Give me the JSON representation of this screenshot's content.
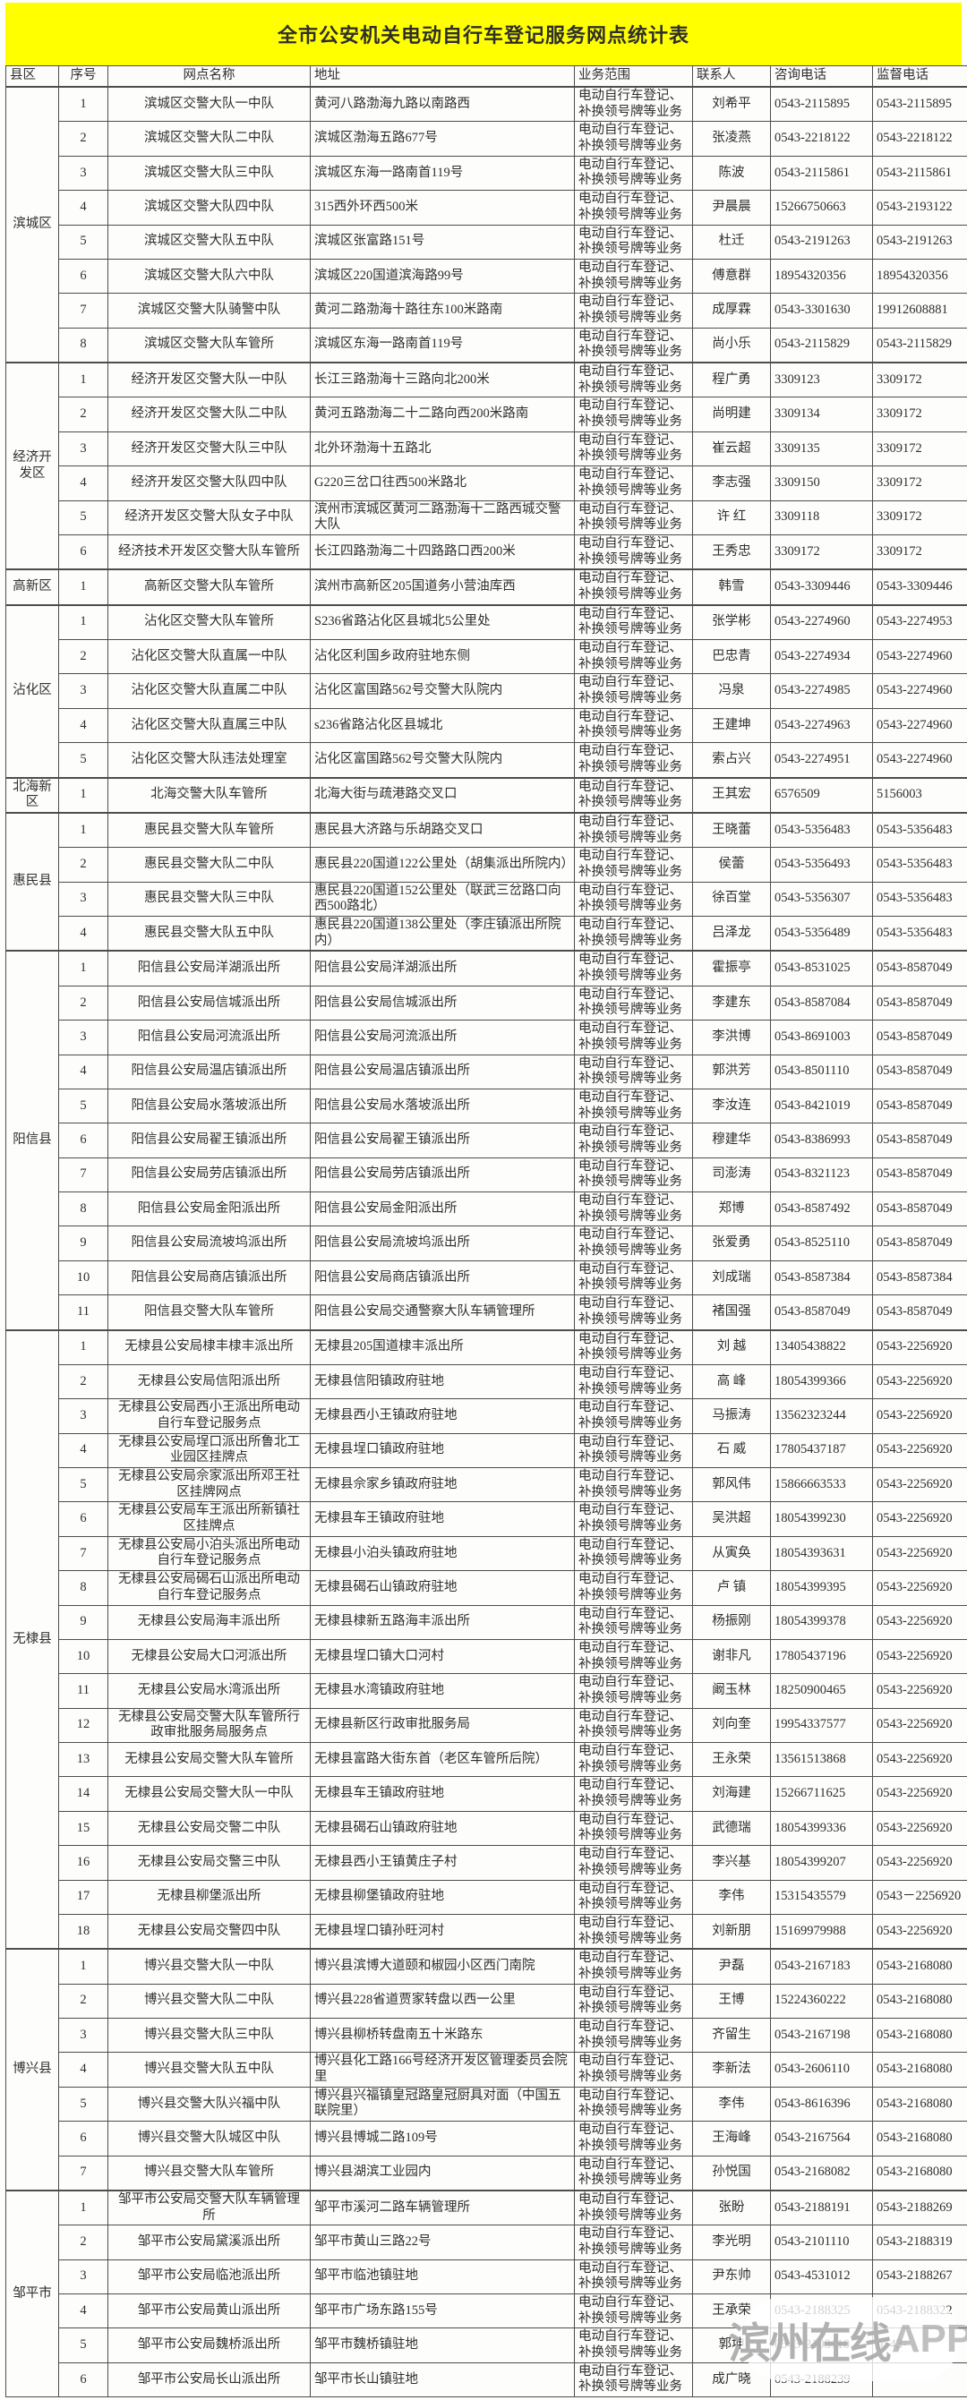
{
  "title": "全市公安机关电动自行车登记服务网点统计表",
  "columns": [
    "县区",
    "序号",
    "网点名称",
    "地址",
    "业务范围",
    "联系人",
    "咨询电话",
    "监督电话"
  ],
  "business_scope": "电动自行车登记、补换领号牌等业务",
  "watermark": {
    "text_cn": "滨州在线",
    "text_en": "APP"
  },
  "colors": {
    "title_bg": "#FFFF00",
    "border": "#4d4d4d"
  },
  "groups": [
    {
      "county": "滨城区",
      "rows": [
        {
          "no": "1",
          "name": "滨城区交警大队一中队",
          "addr": "黄河八路渤海九路以南路西",
          "contact": "刘希平",
          "tel": "0543-2115895",
          "sup": "0543-2115895"
        },
        {
          "no": "2",
          "name": "滨城区交警大队二中队",
          "addr": "滨城区渤海五路677号",
          "contact": "张凌燕",
          "tel": "0543-2218122",
          "sup": "0543-2218122"
        },
        {
          "no": "3",
          "name": "滨城区交警大队三中队",
          "addr": "滨城区东海一路南首119号",
          "contact": "陈波",
          "tel": "0543-2115861",
          "sup": "0543-2115861"
        },
        {
          "no": "4",
          "name": "滨城区交警大队四中队",
          "addr": "315西外环西500米",
          "contact": "尹晨晨",
          "tel": "15266750663",
          "sup": "0543-2193122"
        },
        {
          "no": "5",
          "name": "滨城区交警大队五中队",
          "addr": "滨城区张富路151号",
          "contact": "杜迁",
          "tel": "0543-2191263",
          "sup": "0543-2191263"
        },
        {
          "no": "6",
          "name": "滨城区交警大队六中队",
          "addr": "滨城区220国道滨海路99号",
          "contact": "傅意群",
          "tel": "18954320356",
          "sup": "18954320356"
        },
        {
          "no": "7",
          "name": "滨城区交警大队骑警中队",
          "addr": "黄河二路渤海十路往东100米路南",
          "contact": "成厚霖",
          "tel": "0543-3301630",
          "sup": "19912608881"
        },
        {
          "no": "8",
          "name": "滨城区交警大队车管所",
          "addr": "滨城区东海一路南首119号",
          "contact": "尚小乐",
          "tel": "0543-2115829",
          "sup": "0543-2115829"
        }
      ]
    },
    {
      "county": "经济开发区",
      "rows": [
        {
          "no": "1",
          "name": "经济开发区交警大队一中队",
          "addr": "长江三路渤海十三路向北200米",
          "contact": "程广勇",
          "tel": "3309123",
          "sup": "3309172"
        },
        {
          "no": "2",
          "name": "经济开发区交警大队二中队",
          "addr": "黄河五路渤海二十二路向西200米路南",
          "contact": "尚明建",
          "tel": "3309134",
          "sup": "3309172"
        },
        {
          "no": "3",
          "name": "经济开发区交警大队三中队",
          "addr": "北外环渤海十五路北",
          "contact": "崔云超",
          "tel": "3309135",
          "sup": "3309172"
        },
        {
          "no": "4",
          "name": "经济开发区交警大队四中队",
          "addr": "G220三岔口往西500米路北",
          "contact": "李志强",
          "tel": "3309150",
          "sup": "3309172"
        },
        {
          "no": "5",
          "name": "经济开发区交警大队女子中队",
          "addr": "滨州市滨城区黄河二路渤海十二路西城交警大队",
          "contact": "许  红",
          "tel": "3309118",
          "sup": "3309172"
        },
        {
          "no": "6",
          "name": "经济技术开发区交警大队车管所",
          "addr": "长江四路渤海二十四路路口西200米",
          "contact": "王秀忠",
          "tel": "3309172",
          "sup": "3309172"
        }
      ]
    },
    {
      "county": "高新区",
      "rows": [
        {
          "no": "1",
          "name": "高新区交警大队车管所",
          "addr": "滨州市高新区205国道务小营油库西",
          "contact": "韩雪",
          "tel": "0543-3309446",
          "sup": "0543-3309446"
        }
      ]
    },
    {
      "county": "沾化区",
      "rows": [
        {
          "no": "1",
          "name": "沾化区交警大队车管所",
          "addr": "S236省路沾化区县城北5公里处",
          "contact": "张学彬",
          "tel": "0543-2274960",
          "sup": "0543-2274953"
        },
        {
          "no": "2",
          "name": "沾化区交警大队直属一中队",
          "addr": "沾化区利国乡政府驻地东侧",
          "contact": "巴忠青",
          "tel": "0543-2274934",
          "sup": "0543-2274960"
        },
        {
          "no": "3",
          "name": "沾化区交警大队直属二中队",
          "addr": "沾化区富国路562号交警大队院内",
          "contact": "冯泉",
          "tel": "0543-2274985",
          "sup": "0543-2274960"
        },
        {
          "no": "4",
          "name": "沾化区交警大队直属三中队",
          "addr": "s236省路沾化区县城北",
          "contact": "王建坤",
          "tel": "0543-2274963",
          "sup": "0543-2274960"
        },
        {
          "no": "5",
          "name": "沾化区交警大队违法处理室",
          "addr": "沾化区富国路562号交警大队院内",
          "contact": "索占兴",
          "tel": "0543-2274951",
          "sup": "0543-2274960"
        }
      ]
    },
    {
      "county": "北海新区",
      "rows": [
        {
          "no": "1",
          "name": "北海交警大队车管所",
          "addr": "北海大街与疏港路交叉口",
          "contact": "王其宏",
          "tel": "6576509",
          "sup": "5156003"
        }
      ]
    },
    {
      "county": "惠民县",
      "rows": [
        {
          "no": "1",
          "name": "惠民县交警大队车管所",
          "addr": "惠民县大济路与乐胡路交叉口",
          "contact": "王晓蕾",
          "tel": "0543-5356483",
          "sup": "0543-5356483"
        },
        {
          "no": "2",
          "name": "惠民县交警大队二中队",
          "addr": "惠民县220国道122公里处（胡集派出所院内）",
          "contact": "侯蕾",
          "tel": "0543-5356493",
          "sup": "0543-5356483"
        },
        {
          "no": "3",
          "name": "惠民县交警大队三中队",
          "addr": "惠民县220国道152公里处（联武三岔路口向西500路北）",
          "contact": "徐百堂",
          "tel": "0543-5356307",
          "sup": "0543-5356483"
        },
        {
          "no": "4",
          "name": "惠民县交警大队五中队",
          "addr": "惠民县220国道138公里处（李庄镇派出所院内）",
          "contact": "吕泽龙",
          "tel": "0543-5356489",
          "sup": "0543-5356483"
        }
      ]
    },
    {
      "county": "阳信县",
      "rows": [
        {
          "no": "1",
          "name": "阳信县公安局洋湖派出所",
          "addr": "阳信县公安局洋湖派出所",
          "contact": "霍振亭",
          "tel": "0543-8531025",
          "sup": "0543-8587049"
        },
        {
          "no": "2",
          "name": "阳信县公安局信城派出所",
          "addr": "阳信县公安局信城派出所",
          "contact": "李建东",
          "tel": "0543-8587084",
          "sup": "0543-8587049"
        },
        {
          "no": "3",
          "name": "阳信县公安局河流派出所",
          "addr": "阳信县公安局河流派出所",
          "contact": "李洪博",
          "tel": "0543-8691003",
          "sup": "0543-8587049"
        },
        {
          "no": "4",
          "name": "阳信县公安局温店镇派出所",
          "addr": "阳信县公安局温店镇派出所",
          "contact": "郭洪芳",
          "tel": "0543-8501110",
          "sup": "0543-8587049"
        },
        {
          "no": "5",
          "name": "阳信县公安局水落坡派出所",
          "addr": "阳信县公安局水落坡派出所",
          "contact": "李汝连",
          "tel": "0543-8421019",
          "sup": "0543-8587049"
        },
        {
          "no": "6",
          "name": "阳信县公安局翟王镇派出所",
          "addr": "阳信县公安局翟王镇派出所",
          "contact": "穆建华",
          "tel": "0543-8386993",
          "sup": "0543-8587049"
        },
        {
          "no": "7",
          "name": "阳信县公安局劳店镇派出所",
          "addr": "阳信县公安局劳店镇派出所",
          "contact": "司澎涛",
          "tel": "0543-8321123",
          "sup": "0543-8587049"
        },
        {
          "no": "8",
          "name": "阳信县公安局金阳派出所",
          "addr": "阳信县公安局金阳派出所",
          "contact": "郑博",
          "tel": "0543-8587492",
          "sup": "0543-8587049"
        },
        {
          "no": "9",
          "name": "阳信县公安局流坡坞派出所",
          "addr": "阳信县公安局流坡坞派出所",
          "contact": "张爱勇",
          "tel": "0543-8525110",
          "sup": "0543-8587049"
        },
        {
          "no": "10",
          "name": "阳信县公安局商店镇派出所",
          "addr": "阳信县公安局商店镇派出所",
          "contact": "刘成瑞",
          "tel": "0543-8587384",
          "sup": "0543-8587384"
        },
        {
          "no": "11",
          "name": "阳信县交警大队车管所",
          "addr": "阳信县公安局交通警察大队车辆管理所",
          "contact": "褚国强",
          "tel": "0543-8587049",
          "sup": "0543-8587049"
        }
      ]
    },
    {
      "county": "无棣县",
      "rows": [
        {
          "no": "1",
          "name": "无棣县公安局棣丰棣丰派出所",
          "addr": "无棣县205国道棣丰派出所",
          "contact": "刘  越",
          "tel": "13405438822",
          "sup": "0543-2256920"
        },
        {
          "no": "2",
          "name": "无棣县公安局信阳派出所",
          "addr": "无棣县信阳镇政府驻地",
          "contact": "高  峰",
          "tel": "18054399366",
          "sup": "0543-2256920"
        },
        {
          "no": "3",
          "name": "无棣县公安局西小王派出所电动自行车登记服务点",
          "addr": "无棣县西小王镇政府驻地",
          "contact": "马振涛",
          "tel": "13562323244",
          "sup": "0543-2256920"
        },
        {
          "no": "4",
          "name": "无棣县公安局埕口派出所鲁北工业园区挂牌点",
          "addr": "无棣县埕口镇政府驻地",
          "contact": "石  威",
          "tel": "17805437187",
          "sup": "0543-2256920"
        },
        {
          "no": "5",
          "name": "无棣县公安局佘家派出所邓王社区挂牌网点",
          "addr": "无棣县佘家乡镇政府驻地",
          "contact": "郭风伟",
          "tel": "15866663533",
          "sup": "0543-2256920"
        },
        {
          "no": "6",
          "name": "无棣县公安局车王派出所新镇社区挂牌点",
          "addr": "无棣县车王镇政府驻地",
          "contact": "吴洪超",
          "tel": "18054399230",
          "sup": "0543-2256920"
        },
        {
          "no": "7",
          "name": "无棣县公安局小泊头派出所电动自行车登记服务点",
          "addr": "无棣县小泊头镇政府驻地",
          "contact": "从寅奂",
          "tel": "18054393631",
          "sup": "0543-2256920"
        },
        {
          "no": "8",
          "name": "无棣县公安局碣石山派出所电动自行车登记服务点",
          "addr": "无棣县碣石山镇政府驻地",
          "contact": "卢  镇",
          "tel": "18054399395",
          "sup": "0543-2256920"
        },
        {
          "no": "9",
          "name": "无棣县公安局海丰派出所",
          "addr": "无棣县棣新五路海丰派出所",
          "contact": "杨振刚",
          "tel": "18054399378",
          "sup": "0543-2256920"
        },
        {
          "no": "10",
          "name": "无棣县公安局大口河派出所",
          "addr": "无棣县埕口镇大口河村",
          "contact": "谢非凡",
          "tel": "17805437196",
          "sup": "0543-2256920"
        },
        {
          "no": "11",
          "name": "无棣县公安局水湾派出所",
          "addr": "无棣县水湾镇政府驻地",
          "contact": "阚玉林",
          "tel": "18250900465",
          "sup": "0543-2256920"
        },
        {
          "no": "12",
          "name": "无棣县公安局交警大队车管所行政审批服务局服务点",
          "addr": "无棣县新区行政审批服务局",
          "contact": "刘向奎",
          "tel": "19954337577",
          "sup": "0543-2256920"
        },
        {
          "no": "13",
          "name": "无棣县公安局交警大队车管所",
          "addr": "无棣县富路大街东首（老区车管所后院）",
          "contact": "王永荣",
          "tel": "13561513868",
          "sup": "0543-2256920"
        },
        {
          "no": "14",
          "name": "无棣县公安局交警大队一中队",
          "addr": "无棣县车王镇政府驻地",
          "contact": "刘海建",
          "tel": "15266711625",
          "sup": "0543-2256920"
        },
        {
          "no": "15",
          "name": "无棣县公安局交警二中队",
          "addr": "无棣县碣石山镇政府驻地",
          "contact": "武德瑞",
          "tel": "18054399336",
          "sup": "0543-2256920"
        },
        {
          "no": "16",
          "name": "无棣县公安局交警三中队",
          "addr": "无棣县西小王镇黄庄子村",
          "contact": "李兴基",
          "tel": "18054399207",
          "sup": "0543-2256920"
        },
        {
          "no": "17",
          "name": "无棣县柳堡派出所",
          "addr": "无棣县柳堡镇政府驻地",
          "contact": "李伟",
          "tel": "15315435579",
          "sup": "0543－2256920"
        },
        {
          "no": "18",
          "name": "无棣县公安局交警四中队",
          "addr": "无棣县埕口镇孙旺河村",
          "contact": "刘新朋",
          "tel": "15169979988",
          "sup": "0543-2256920"
        }
      ]
    },
    {
      "county": "博兴县",
      "rows": [
        {
          "no": "1",
          "name": "博兴县交警大队一中队",
          "addr": "博兴县滨博大道颐和椒园小区西门南院",
          "contact": "尹磊",
          "tel": "0543-2167183",
          "sup": "0543-2168080"
        },
        {
          "no": "2",
          "name": "博兴县交警大队二中队",
          "addr": "博兴县228省道贾家转盘以西一公里",
          "contact": "王博",
          "tel": "15224360222",
          "sup": "0543-2168080"
        },
        {
          "no": "3",
          "name": "博兴县交警大队三中队",
          "addr": "博兴县柳桥转盘南五十米路东",
          "contact": "齐留生",
          "tel": "0543-2167198",
          "sup": "0543-2168080"
        },
        {
          "no": "4",
          "name": "博兴县交警大队五中队",
          "addr": "博兴县化工路166号经济开发区管理委员会院里",
          "contact": "李新法",
          "tel": "0543-2606110",
          "sup": "0543-2168080"
        },
        {
          "no": "5",
          "name": "博兴县交警大队兴福中队",
          "addr": "博兴县兴福镇皇冠路皇冠厨具对面（中国五联院里）",
          "contact": "李伟",
          "tel": "0543-8616396",
          "sup": "0543-2168080"
        },
        {
          "no": "6",
          "name": "博兴县交警大队城区中队",
          "addr": "博兴县博城二路109号",
          "contact": "王海峰",
          "tel": "0543-2167564",
          "sup": "0543-2168080"
        },
        {
          "no": "7",
          "name": "博兴县交警大队车管所",
          "addr": "博兴县湖滨工业园内",
          "contact": "孙悦国",
          "tel": "0543-2168082",
          "sup": "0543-2168080"
        }
      ]
    },
    {
      "county": "邹平市",
      "rows": [
        {
          "no": "1",
          "name": "邹平市公安局交警大队车辆管理所",
          "addr": "邹平市溪河二路车辆管理所",
          "contact": "张盼",
          "tel": "0543-2188191",
          "sup": "0543-2188269"
        },
        {
          "no": "2",
          "name": "邹平市公安局黛溪派出所",
          "addr": "邹平市黄山三路22号",
          "contact": "李光明",
          "tel": "0543-2101110",
          "sup": "0543-2188319"
        },
        {
          "no": "3",
          "name": "邹平市公安局临池派出所",
          "addr": "邹平市临池镇驻地",
          "contact": "尹东帅",
          "tel": "0543-4531012",
          "sup": "0543-2188267"
        },
        {
          "no": "4",
          "name": "邹平市公安局黄山派出所",
          "addr": "邹平市广场东路155号",
          "contact": "王承荣",
          "tel": "0543-2188325",
          "sup": "0543-2188322"
        },
        {
          "no": "5",
          "name": "邹平市公安局魏桥派出所",
          "addr": "邹平市魏桥镇驻地",
          "contact": "郭坤",
          "tel": "0543-2108110",
          "sup": "0543-"
        },
        {
          "no": "6",
          "name": "邹平市公安局长山派出所",
          "addr": "邹平市长山镇驻地",
          "contact": "成广晓",
          "tel": "0543-2188239",
          "sup": ""
        }
      ]
    }
  ]
}
